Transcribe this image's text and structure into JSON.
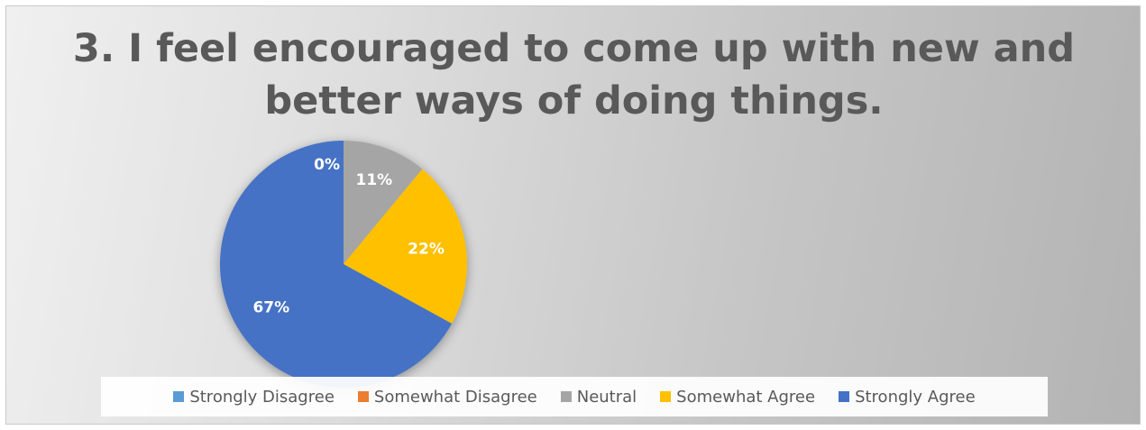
{
  "chart_data": {
    "type": "pie",
    "title": "3. I feel encouraged to come up with new and better ways of doing things.",
    "categories": [
      "Strongly Disagree",
      "Somewhat Disagree",
      "Neutral",
      "Somewhat Agree",
      "Strongly Agree"
    ],
    "values": [
      0,
      0,
      11,
      22,
      67
    ],
    "data_labels": [
      "0%",
      "",
      "11%",
      "22%",
      "67%"
    ],
    "colors": [
      "#5B9BD5",
      "#ED7D31",
      "#A5A5A5",
      "#FFC000",
      "#4472C4"
    ],
    "legend_position": "bottom"
  }
}
